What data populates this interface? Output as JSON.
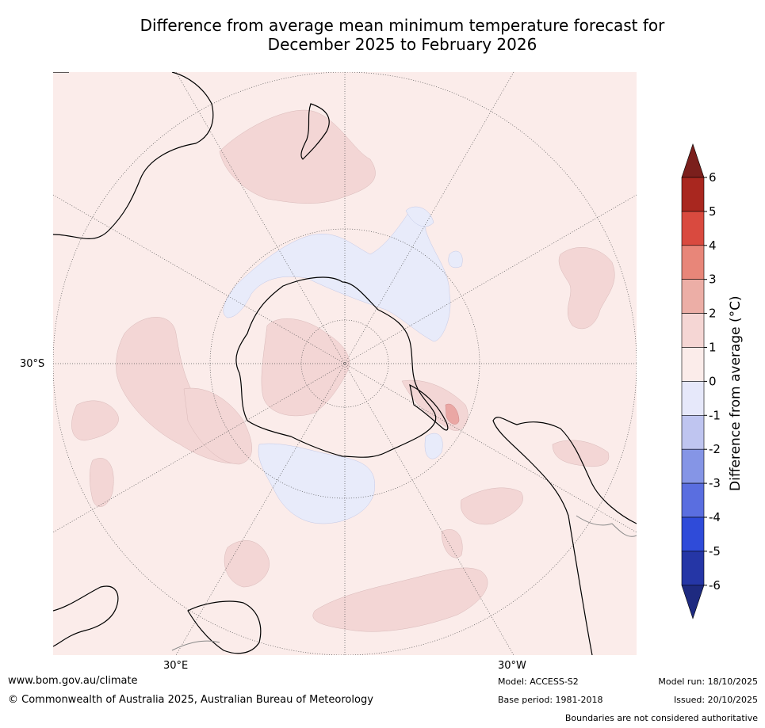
{
  "title": {
    "line1": "Difference from average mean minimum temperature forecast for",
    "line2": "December 2025 to February 2026"
  },
  "map": {
    "projection": "south polar stereographic",
    "labels": {
      "lat_30s": "30°S",
      "lon_30e": "30°E",
      "lon_30w": "30°W"
    },
    "dominant_anomaly_range": "0 to 1",
    "colors": {
      "background_anomaly": "#fbecea",
      "warm_patch": "#f3d6d5",
      "cool_patch": "#e8ebfa",
      "strong_warm": "#eaa7a4",
      "land_line": "#000000",
      "grid_line": "#555555"
    }
  },
  "colorbar": {
    "title": "Difference from average (°C)",
    "ticks": [
      "6",
      "5",
      "4",
      "3",
      "2",
      "1",
      "0",
      "-1",
      "-2",
      "-3",
      "-4",
      "-5",
      "-6"
    ],
    "colors_top_to_bottom": [
      "#7b1f1c",
      "#a9271f",
      "#d94a3f",
      "#e88679",
      "#ecaea6",
      "#f5d6d4",
      "#fbecea",
      "#e6e8fa",
      "#bfc5f0",
      "#8595e6",
      "#5a6ee0",
      "#2f4bd9",
      "#2536a6",
      "#1e2a80"
    ]
  },
  "footer": {
    "website": "www.bom.gov.au/climate",
    "copyright": "© Commonwealth of Australia 2025, Australian Bureau of Meteorology",
    "model": "Model: ACCESS-S2",
    "base_period": "Base period: 1981-2018",
    "model_run": "Model run: 18/10/2025",
    "issued": "Issued: 20/10/2025",
    "disclaimer": "Boundaries are not considered authoritative"
  }
}
